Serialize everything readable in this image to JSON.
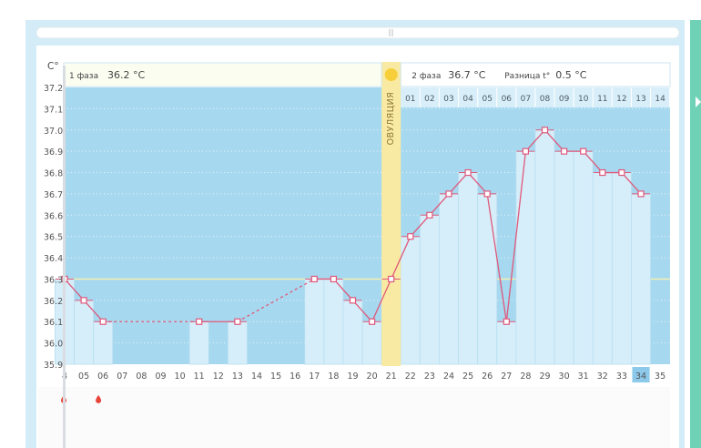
{
  "colors": {
    "frame": "#d3ecf7",
    "panel": "#ffffff",
    "plot_bg": "#a6d8ef",
    "bar": "#d6eefa",
    "bar_edge": "#b7def1",
    "line": "#e0587a",
    "ovulation": "#f8eaa3",
    "sun": "#f6cf3a",
    "coverline": "#f3efb0",
    "teal_bar": "#6fd2b6",
    "highlight_day": "#8cc9ea",
    "drop": "#e8443a"
  },
  "y_unit": "C°",
  "phase1": {
    "label": "1 фаза",
    "temp": "36.2 °C"
  },
  "phase2": {
    "label": "2 фаза",
    "temp": "36.7 °C"
  },
  "difference": {
    "label": "Разница t°",
    "value": "0.5 °C"
  },
  "ovulation_label": "ОВУЛЯЦИЯ",
  "cycle_day_numbers": [
    "01",
    "02",
    "03",
    "04",
    "05",
    "06",
    "07",
    "08",
    "09",
    "10",
    "11",
    "12",
    "13",
    "14"
  ],
  "highlighted_day": "34",
  "chart_data": {
    "type": "line",
    "x": [
      "4",
      "05",
      "06",
      "07",
      "08",
      "09",
      "10",
      "11",
      "12",
      "13",
      "14",
      "15",
      "16",
      "17",
      "18",
      "19",
      "20",
      "21",
      "22",
      "23",
      "24",
      "25",
      "26",
      "27",
      "28",
      "29",
      "30",
      "31",
      "32",
      "33",
      "34",
      "35"
    ],
    "yticks": [
      "37.2",
      "37.1",
      "37.0",
      "36.9",
      "36.8",
      "36.7",
      "36.6",
      "36.5",
      "36.4",
      "36.3",
      "36.2",
      "36.1",
      "36.0",
      "35.9"
    ],
    "ylim": [
      35.9,
      37.2
    ],
    "coverline": 36.3,
    "ovulation_day": "21",
    "points": [
      {
        "x": "4",
        "y": 36.3
      },
      {
        "x": "05",
        "y": 36.2
      },
      {
        "x": "06",
        "y": 36.1
      },
      {
        "x": "11",
        "y": 36.1
      },
      {
        "x": "13",
        "y": 36.1
      },
      {
        "x": "17",
        "y": 36.3
      },
      {
        "x": "18",
        "y": 36.3
      },
      {
        "x": "19",
        "y": 36.2
      },
      {
        "x": "20",
        "y": 36.1
      },
      {
        "x": "21",
        "y": 36.3
      },
      {
        "x": "22",
        "y": 36.5
      },
      {
        "x": "23",
        "y": 36.6
      },
      {
        "x": "24",
        "y": 36.7
      },
      {
        "x": "25",
        "y": 36.8
      },
      {
        "x": "26",
        "y": 36.7
      },
      {
        "x": "27",
        "y": 36.1
      },
      {
        "x": "28",
        "y": 36.9
      },
      {
        "x": "29",
        "y": 37.0
      },
      {
        "x": "30",
        "y": 36.9
      },
      {
        "x": "31",
        "y": 36.9
      },
      {
        "x": "32",
        "y": 36.8
      },
      {
        "x": "33",
        "y": 36.8
      },
      {
        "x": "34",
        "y": 36.7
      }
    ],
    "dashed_segments": [
      [
        "06",
        "11"
      ],
      [
        "13",
        "17"
      ]
    ],
    "bleeding_days": [
      "4",
      "05"
    ]
  }
}
